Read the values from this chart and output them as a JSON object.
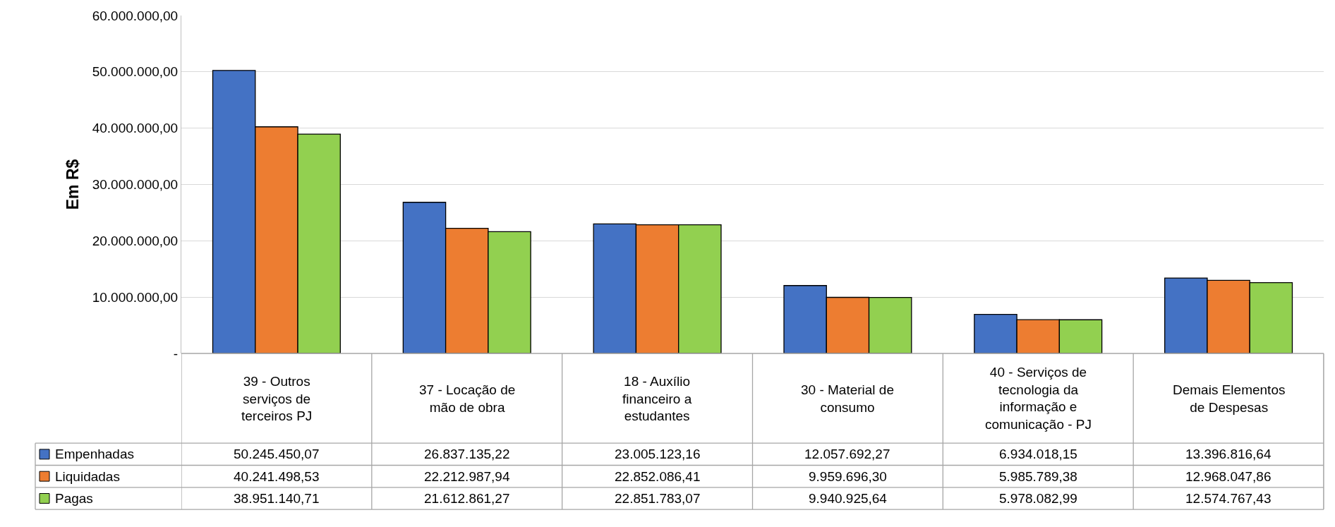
{
  "chart_data": {
    "type": "bar",
    "ylabel": "Em R$",
    "categories": [
      "39 - Outros serviços de terceiros PJ",
      "37 - Locação de mão de obra",
      "18 - Auxílio financeiro a estudantes",
      "30 - Material de consumo",
      "40 - Serviços de tecnologia da informação e comunicação - PJ",
      "Demais Elementos de Despesas"
    ],
    "series": [
      {
        "name": "Empenhadas",
        "color": "#4472c4",
        "values": [
          50245450.07,
          26837135.22,
          23005123.16,
          12057692.27,
          6934018.15,
          13396816.64
        ],
        "value_labels": [
          "50.245.450,07",
          "26.837.135,22",
          "23.005.123,16",
          "12.057.692,27",
          "6.934.018,15",
          "13.396.816,64"
        ]
      },
      {
        "name": "Liquidadas",
        "color": "#ed7d31",
        "values": [
          40241498.53,
          22212987.94,
          22852086.41,
          9959696.3,
          5985789.38,
          12968047.86
        ],
        "value_labels": [
          "40.241.498,53",
          "22.212.987,94",
          "22.852.086,41",
          "9.959.696,30",
          "5.985.789,38",
          "12.968.047,86"
        ]
      },
      {
        "name": "Pagas",
        "color": "#92d050",
        "values": [
          38951140.71,
          21612861.27,
          22851783.07,
          9940925.64,
          5978082.99,
          12574767.43
        ],
        "value_labels": [
          "38.951.140,71",
          "21.612.861,27",
          "22.851.783,07",
          "9.940.925,64",
          "5.978.082,99",
          "12.574.767,43"
        ]
      }
    ],
    "ylim": [
      0,
      60000000
    ],
    "yticks": [
      {
        "value": 0,
        "label": "-"
      },
      {
        "value": 10000000,
        "label": "10.000.000,00"
      },
      {
        "value": 20000000,
        "label": "20.000.000,00"
      },
      {
        "value": 30000000,
        "label": "30.000.000,00"
      },
      {
        "value": 40000000,
        "label": "40.000.000,00"
      },
      {
        "value": 50000000,
        "label": "50.000.000,00"
      },
      {
        "value": 60000000,
        "label": "60.000.000,00"
      }
    ],
    "grid": "y",
    "legend": "bottom left"
  }
}
